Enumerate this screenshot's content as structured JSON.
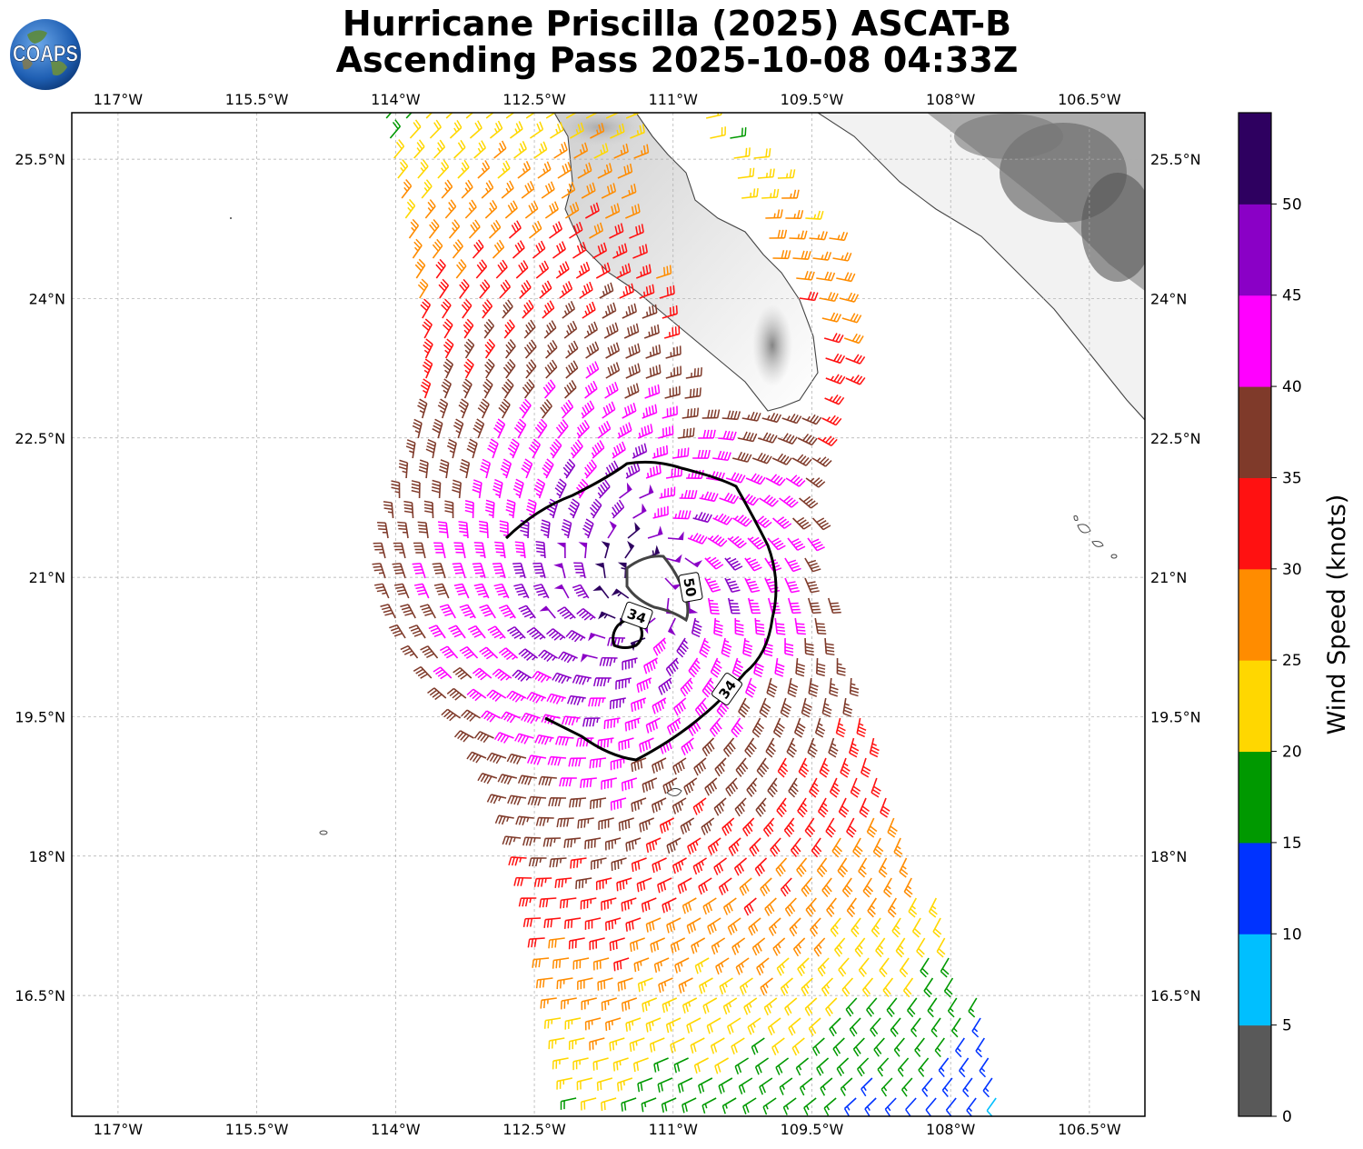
{
  "title": {
    "line1": "Hurricane Priscilla (2025) ASCAT-B",
    "line2": "Ascending Pass 2025-10-08 04:33Z"
  },
  "logo": {
    "text": "COAPS",
    "icon": "globe-icon"
  },
  "map": {
    "lon_range": [
      -117.5,
      -105.9
    ],
    "lat_range": [
      15.2,
      26.0
    ],
    "lon_ticks": [
      {
        "value": -117.0,
        "label": "117°W"
      },
      {
        "value": -115.5,
        "label": "115.5°W"
      },
      {
        "value": -114.0,
        "label": "114°W"
      },
      {
        "value": -112.5,
        "label": "112.5°W"
      },
      {
        "value": -111.0,
        "label": "111°W"
      },
      {
        "value": -109.5,
        "label": "109.5°W"
      },
      {
        "value": -108.0,
        "label": "108°W"
      },
      {
        "value": -106.5,
        "label": "106.5°W"
      }
    ],
    "lat_ticks": [
      {
        "value": 25.5,
        "label": "25.5°N"
      },
      {
        "value": 24.0,
        "label": "24°N"
      },
      {
        "value": 22.5,
        "label": "22.5°N"
      },
      {
        "value": 21.0,
        "label": "21°N"
      },
      {
        "value": 19.5,
        "label": "19.5°N"
      },
      {
        "value": 18.0,
        "label": "18°N"
      },
      {
        "value": 16.5,
        "label": "16.5°N"
      }
    ],
    "gridlines": true,
    "storm_center": {
      "lon": -111.3,
      "lat": 20.9
    },
    "contour_labels": [
      "34",
      "50",
      "34"
    ]
  },
  "colorbar": {
    "label": "Wind Speed (knots)",
    "ticks": [
      "0",
      "5",
      "10",
      "15",
      "20",
      "25",
      "30",
      "35",
      "40",
      "45",
      "50"
    ],
    "colors": [
      "#595959",
      "#00bfff",
      "#0033ff",
      "#009900",
      "#ffd700",
      "#ff8c00",
      "#ff1111",
      "#7f3a2a",
      "#ff00ff",
      "#8a00c6",
      "#2e0060"
    ]
  }
}
